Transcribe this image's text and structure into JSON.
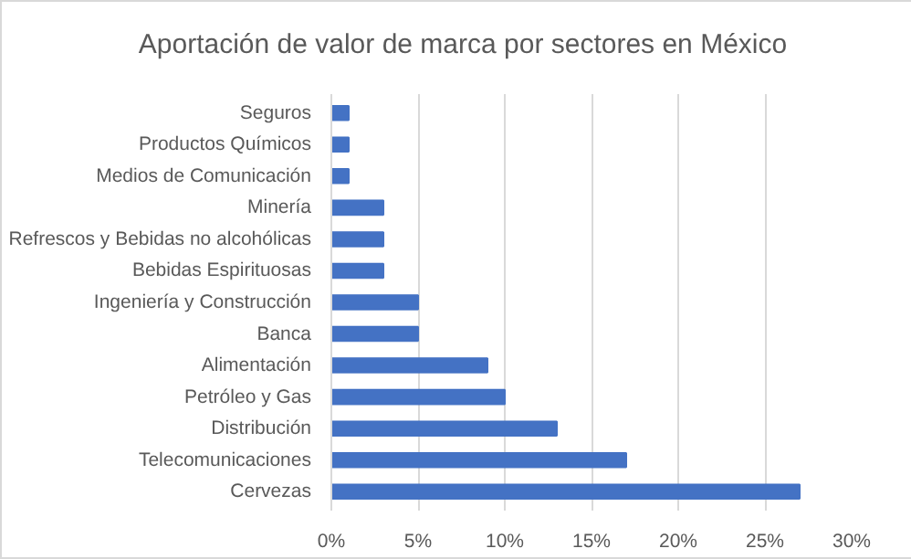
{
  "chart_data": {
    "type": "bar",
    "orientation": "horizontal",
    "title": "Aportación de valor de marca por sectores en México",
    "categories": [
      "Seguros",
      "Productos Químicos",
      "Medios de Comunicación",
      "Minería",
      "Refrescos y Bebidas no alcohólicas",
      "Bebidas Espirituosas",
      "Ingeniería y Construcción",
      "Banca",
      "Alimentación",
      "Petróleo y Gas",
      "Distribución",
      "Telecomunicaciones",
      "Cervezas"
    ],
    "values": [
      1,
      1,
      1,
      3,
      3,
      3,
      5,
      5,
      9,
      10,
      13,
      17,
      27
    ],
    "color": "#4472c4",
    "xlim": [
      0,
      30
    ],
    "xticks": [
      {
        "value": 0,
        "label": "0%"
      },
      {
        "value": 5,
        "label": "5%"
      },
      {
        "value": 10,
        "label": "10%"
      },
      {
        "value": 15,
        "label": "15%"
      },
      {
        "value": 20,
        "label": "20%"
      },
      {
        "value": 25,
        "label": "25%"
      },
      {
        "value": 30,
        "label": "30%"
      }
    ],
    "grid": "x"
  }
}
